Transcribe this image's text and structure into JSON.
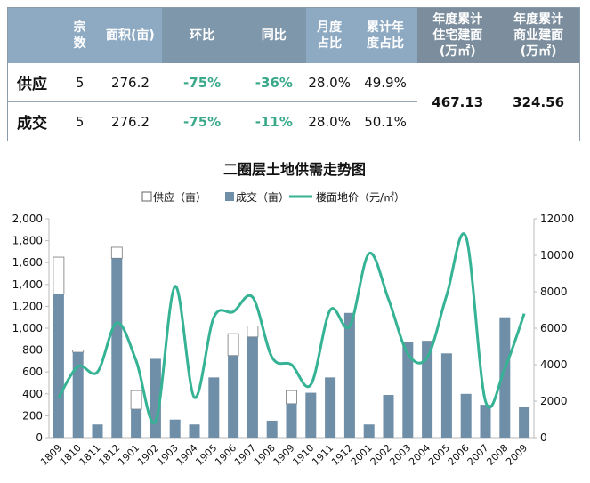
{
  "table": {
    "headers": [
      "",
      "宗数",
      "面积(亩)",
      "环比",
      "同比",
      "月度占比",
      "累计年度占比",
      "年度累计住宅建面（万㎡）",
      "年度累计商业建面（万㎡）"
    ],
    "header_lines": [
      [
        ""
      ],
      [
        "宗",
        "数"
      ],
      [
        "面积(亩)"
      ],
      [
        "环比"
      ],
      [
        "同比"
      ],
      [
        "月度",
        "占比"
      ],
      [
        "累计年",
        "度占比"
      ],
      [
        "年度累计",
        "住宅建面",
        "(万㎡)"
      ],
      [
        "年度累计",
        "商业建面",
        "(万㎡)"
      ]
    ],
    "rows": [
      {
        "label": "供应",
        "count": "5",
        "area": "276.2",
        "mom": "-75%",
        "yoy": "-36%",
        "month_share": "28.0%",
        "ytd_share": "49.9%"
      },
      {
        "label": "成交",
        "count": "5",
        "area": "276.2",
        "mom": "-75%",
        "yoy": "-11%",
        "month_share": "28.0%",
        "ytd_share": "50.1%"
      }
    ],
    "residential": "467.13",
    "commercial": "324.56"
  },
  "colors": {
    "supply": "#ffffff",
    "deal": "#6f8ea8",
    "price": "#35b394",
    "header_light": "#8eaac3",
    "header_dark": "#7f97ab",
    "positive_green": "#3aa98a"
  },
  "chart_data": {
    "type": "bar+line",
    "title": "二圈层土地供需走势图",
    "categories": [
      "1809",
      "1810",
      "1811",
      "1812",
      "1901",
      "1902",
      "1903",
      "1904",
      "1905",
      "1906",
      "1907",
      "1908",
      "1909",
      "1910",
      "1911",
      "1912",
      "2001",
      "2002",
      "2003",
      "2004",
      "2005",
      "2006",
      "2007",
      "2008",
      "2009"
    ],
    "series": [
      {
        "name": "供应（亩）",
        "type": "bar",
        "axis": "left",
        "values": [
          1650,
          800,
          120,
          1740,
          430,
          720,
          165,
          120,
          550,
          950,
          1020,
          155,
          430,
          410,
          550,
          1140,
          120,
          390,
          870,
          885,
          770,
          400,
          300,
          1100,
          280
        ]
      },
      {
        "name": "成交（亩）",
        "type": "bar",
        "axis": "left",
        "values": [
          1310,
          780,
          120,
          1640,
          260,
          720,
          165,
          120,
          550,
          750,
          920,
          155,
          310,
          410,
          550,
          1140,
          120,
          390,
          870,
          885,
          770,
          400,
          300,
          1100,
          280
        ]
      },
      {
        "name": "楼面地价（元/㎡）",
        "type": "line",
        "axis": "right",
        "values": [
          2200,
          3900,
          3600,
          6300,
          4200,
          900,
          8300,
          2200,
          6600,
          6900,
          7700,
          4400,
          4000,
          2900,
          7000,
          6100,
          10100,
          7600,
          4600,
          4400,
          7800,
          11000,
          2000,
          3800,
          6800
        ]
      }
    ],
    "left_axis": {
      "range": [
        0,
        2000
      ],
      "ticks": [
        "0",
        "200",
        "400",
        "600",
        "800",
        "1,000",
        "1,200",
        "1,400",
        "1,600",
        "1,800",
        "2,000"
      ]
    },
    "right_axis": {
      "range": [
        0,
        12000
      ],
      "ticks": [
        "0",
        "2000",
        "4000",
        "6000",
        "8000",
        "10000",
        "12000"
      ]
    },
    "legend_position": "top",
    "grid": false
  }
}
